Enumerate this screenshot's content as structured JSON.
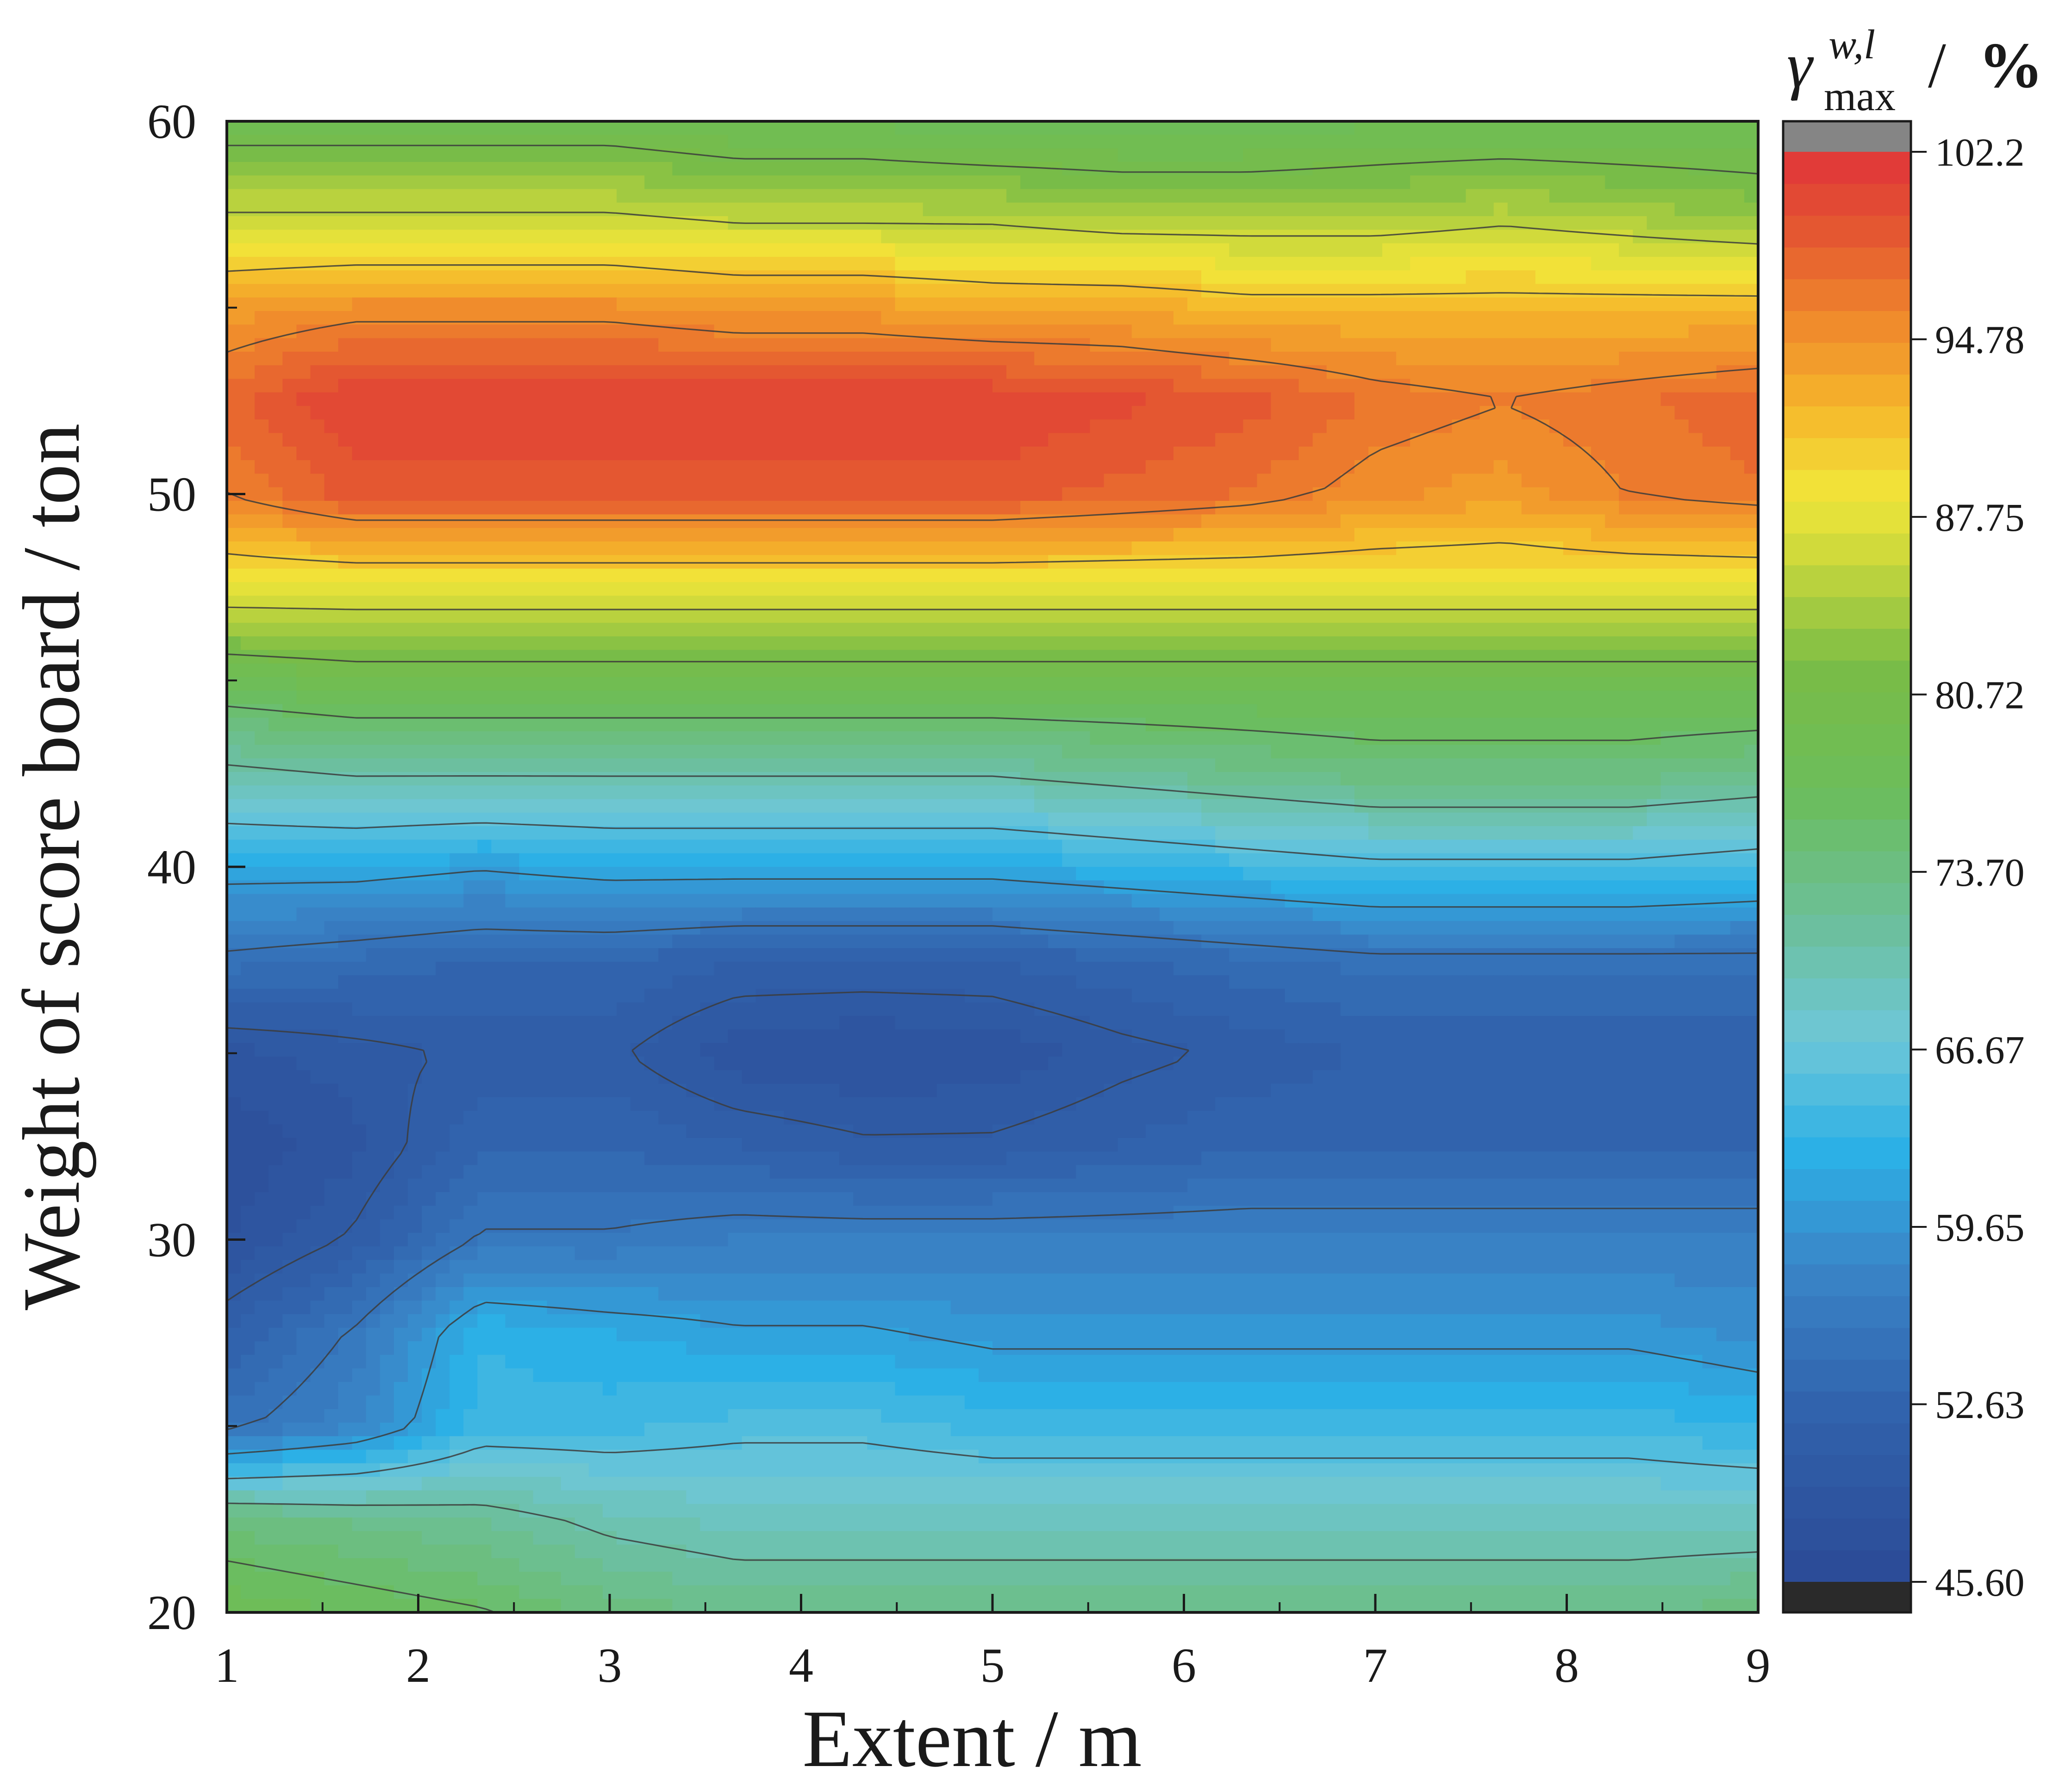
{
  "chart_data": {
    "type": "heatmap",
    "subtype": "filled-contour",
    "xlabel": "Extent / m",
    "ylabel": "Weight of score board / ton",
    "xlim": [
      1,
      9
    ],
    "ylim": [
      20,
      60
    ],
    "xticks": [
      1,
      2,
      3,
      4,
      5,
      6,
      7,
      8,
      9
    ],
    "yticks": [
      20,
      30,
      40,
      50,
      60
    ],
    "x_minor_step": 0.5,
    "y_minor_step": 5,
    "x": [
      1,
      1.67,
      2.33,
      3,
      3.67,
      4.33,
      5,
      5.67,
      6.33,
      7,
      7.67,
      8.33,
      9
    ],
    "y": [
      20,
      22.5,
      25,
      27.5,
      30,
      32.5,
      35,
      37.5,
      40,
      42.5,
      45,
      47.5,
      50,
      52.5,
      55,
      57.5,
      60
    ],
    "z": [
      [
        78,
        77,
        76,
        74,
        73,
        73,
        73,
        73,
        73,
        73,
        73,
        73,
        74
      ],
      [
        74,
        73,
        72,
        70,
        69,
        69,
        69,
        69,
        69,
        69,
        69,
        69,
        69
      ],
      [
        55,
        58,
        64,
        64,
        65,
        65,
        64,
        64,
        64,
        64,
        64,
        64,
        63
      ],
      [
        52,
        56,
        63,
        62,
        61,
        61,
        60,
        60,
        60,
        60,
        60,
        60,
        59
      ],
      [
        48,
        51,
        56,
        56,
        57,
        57,
        57,
        57,
        57,
        57,
        57,
        57,
        57
      ],
      [
        47,
        49,
        53,
        53,
        52,
        51,
        51,
        52,
        53,
        53,
        53,
        53,
        53
      ],
      [
        49,
        50,
        51,
        51,
        48.5,
        48,
        48.5,
        50,
        51,
        52,
        52,
        52,
        52
      ],
      [
        55,
        54,
        53,
        53,
        52,
        52,
        52,
        53,
        54,
        55,
        55,
        55,
        55
      ],
      [
        62,
        62,
        61,
        62,
        62,
        62,
        62,
        63,
        64,
        65,
        65,
        65,
        64
      ],
      [
        70,
        71,
        71,
        71,
        71,
        71,
        71,
        72,
        73,
        74,
        74,
        74,
        73
      ],
      [
        78,
        79,
        79,
        79,
        79,
        79,
        79,
        79,
        79,
        79,
        79,
        79,
        79
      ],
      [
        88,
        88,
        88,
        88,
        88,
        88,
        88,
        88,
        88,
        88,
        88,
        88,
        88
      ],
      [
        96,
        99,
        99,
        99,
        99,
        99,
        99,
        98,
        97,
        95,
        94,
        96,
        97
      ],
      [
        98,
        101,
        101,
        101,
        101,
        101,
        101,
        100,
        99,
        97,
        96,
        97,
        98
      ],
      [
        94,
        95,
        95,
        95,
        94,
        94,
        93,
        93,
        92,
        92,
        92,
        92,
        92
      ],
      [
        86,
        86,
        86,
        86,
        85,
        85,
        85,
        84,
        84,
        84,
        85,
        84,
        83
      ],
      [
        79,
        79,
        79,
        79,
        78,
        78,
        77,
        77,
        77,
        78,
        78,
        78,
        78
      ]
    ],
    "colorbar": {
      "title_main": "γ",
      "title_sup": "w,l",
      "title_sub": "max",
      "title_suffix": " / ",
      "title_unit": "%",
      "min": 45.6,
      "max": 102.2,
      "tick_values": [
        102.2,
        94.78,
        87.75,
        80.72,
        73.7,
        66.67,
        59.65,
        52.63,
        45.6
      ],
      "tick_labels": [
        "102.2",
        "94.78",
        "87.75",
        "80.72",
        "73.70",
        "66.67",
        "59.65",
        "52.63",
        "45.60"
      ],
      "levels": 45,
      "colormap": [
        [
          0.0,
          "#2c4a96"
        ],
        [
          0.12,
          "#3162ac"
        ],
        [
          0.22,
          "#3a85c7"
        ],
        [
          0.3,
          "#2cb0e6"
        ],
        [
          0.38,
          "#6ec7d8"
        ],
        [
          0.46,
          "#6cbf9c"
        ],
        [
          0.55,
          "#6bbd5c"
        ],
        [
          0.64,
          "#79bc46"
        ],
        [
          0.72,
          "#cfd93b"
        ],
        [
          0.76,
          "#f2e63a"
        ],
        [
          0.82,
          "#f5b72b"
        ],
        [
          0.88,
          "#f08a2c"
        ],
        [
          0.94,
          "#e45a30"
        ],
        [
          1.0,
          "#e0343a"
        ]
      ],
      "over_color": "#858585",
      "under_color": "#2a2a2a"
    }
  }
}
